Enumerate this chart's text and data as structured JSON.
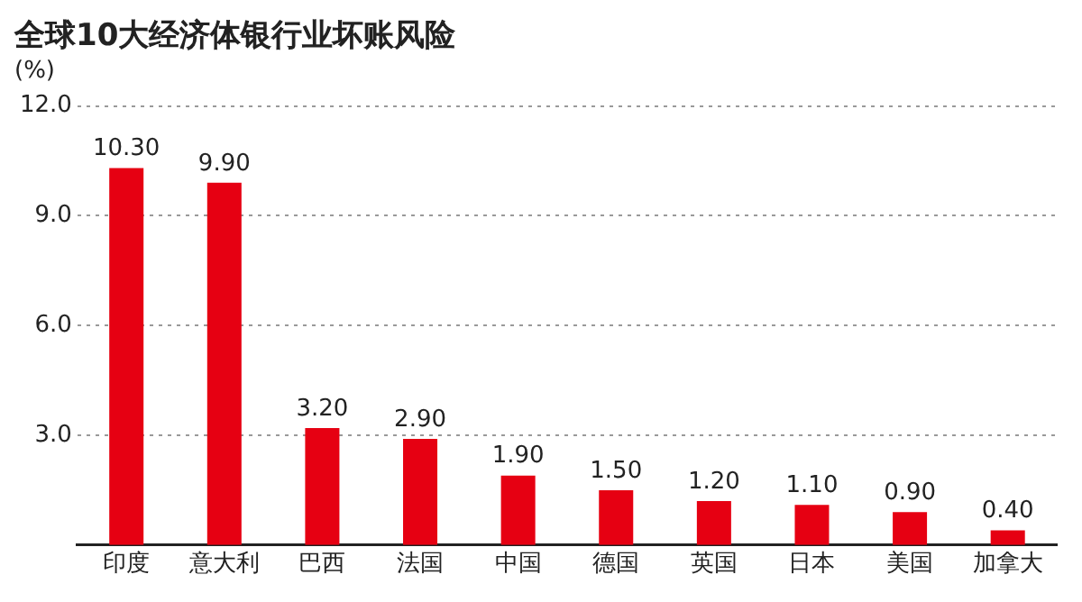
{
  "chart_data": {
    "type": "bar",
    "title": "全球10大经济体银行业坏账风险",
    "ylabel": "(%)",
    "categories": [
      "印度",
      "意大利",
      "巴西",
      "法国",
      "中国",
      "德国",
      "英国",
      "日本",
      "美国",
      "加拿大"
    ],
    "values": [
      10.3,
      9.9,
      3.2,
      2.9,
      1.9,
      1.5,
      1.2,
      1.1,
      0.9,
      0.4
    ],
    "value_labels": [
      "10.30",
      "9.90",
      "3.20",
      "2.90",
      "1.90",
      "1.50",
      "1.20",
      "1.10",
      "0.90",
      "0.40"
    ],
    "color": "#e60012",
    "ylim": [
      0,
      12
    ],
    "yticks": [
      {
        "value": 3,
        "label": "3.0"
      },
      {
        "value": 6,
        "label": "6.0"
      },
      {
        "value": 9,
        "label": "9.0"
      },
      {
        "value": 12,
        "label": "12.0"
      }
    ],
    "grid": "y",
    "legend": false
  }
}
